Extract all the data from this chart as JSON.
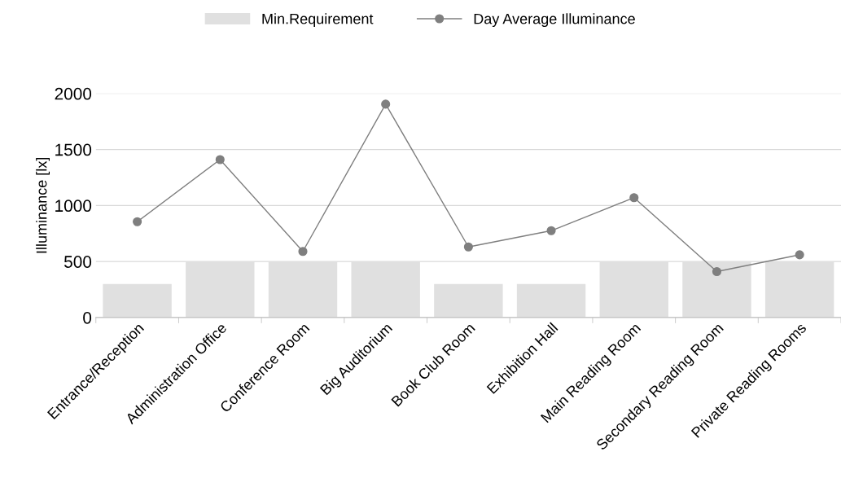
{
  "chart_data": {
    "type": "bar",
    "ylabel": "Illuminance [lx]",
    "categories": [
      "Entrance/Reception",
      "Administration Office",
      "Conference Room",
      "Big Auditorium",
      "Book Club Room",
      "Exhibition Hall",
      "Main Reading Room",
      "Secondary Reading Room",
      "Private Reading Rooms"
    ],
    "series": [
      {
        "name": "Min.Requirement",
        "color": "#e0e0e0",
        "values": [
          300,
          500,
          500,
          500,
          300,
          300,
          500,
          500,
          500
        ]
      },
      {
        "name": "Day Average Illuminance",
        "type": "line",
        "color": "#7f7f7f",
        "marker": "circle",
        "values": [
          855,
          1410,
          590,
          1905,
          630,
          775,
          1070,
          410,
          560
        ]
      }
    ],
    "ylim": [
      0,
      2000
    ],
    "yticks": [
      0,
      500,
      1000,
      1500,
      2000
    ],
    "grid": "y",
    "legend": "top"
  }
}
